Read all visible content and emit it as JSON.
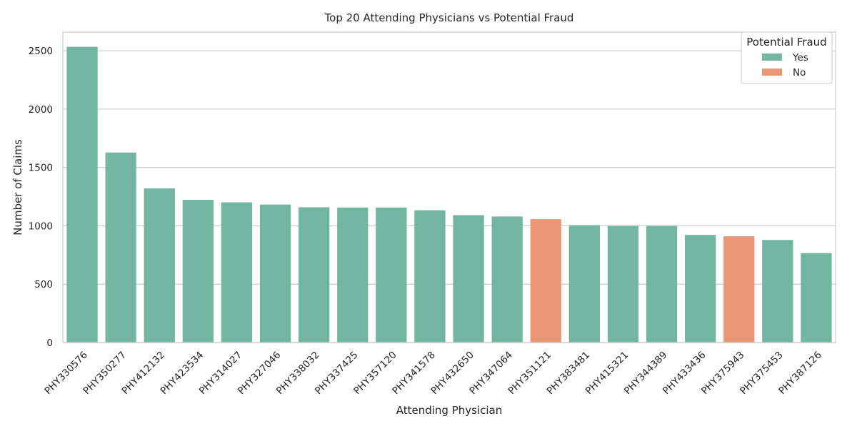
{
  "chart_data": {
    "type": "bar",
    "title": "Top 20 Attending Physicians vs Potential Fraud",
    "xlabel": "Attending Physician",
    "ylabel": "Number of Claims",
    "ylim": [
      0,
      2660
    ],
    "yticks": [
      0,
      500,
      1000,
      1500,
      2000,
      2500
    ],
    "grid": "horizontal",
    "legend": {
      "title": "Potential Fraud",
      "placement": "top-right",
      "entries": [
        {
          "label": "Yes",
          "color": "#72b6a1"
        },
        {
          "label": "No",
          "color": "#e99675"
        }
      ]
    },
    "categories": [
      "PHY330576",
      "PHY350277",
      "PHY412132",
      "PHY423534",
      "PHY314027",
      "PHY327046",
      "PHY338032",
      "PHY337425",
      "PHY357120",
      "PHY341578",
      "PHY432650",
      "PHY347064",
      "PHY351121",
      "PHY383481",
      "PHY415321",
      "PHY344389",
      "PHY433436",
      "PHY375943",
      "PHY375453",
      "PHY387126"
    ],
    "values": [
      2534,
      1628,
      1321,
      1223,
      1201,
      1182,
      1159,
      1157,
      1157,
      1133,
      1091,
      1080,
      1057,
      1006,
      1000,
      1000,
      922,
      910,
      879,
      766
    ],
    "fraud": [
      "Yes",
      "Yes",
      "Yes",
      "Yes",
      "Yes",
      "Yes",
      "Yes",
      "Yes",
      "Yes",
      "Yes",
      "Yes",
      "Yes",
      "No",
      "Yes",
      "Yes",
      "Yes",
      "Yes",
      "No",
      "Yes",
      "Yes"
    ]
  }
}
